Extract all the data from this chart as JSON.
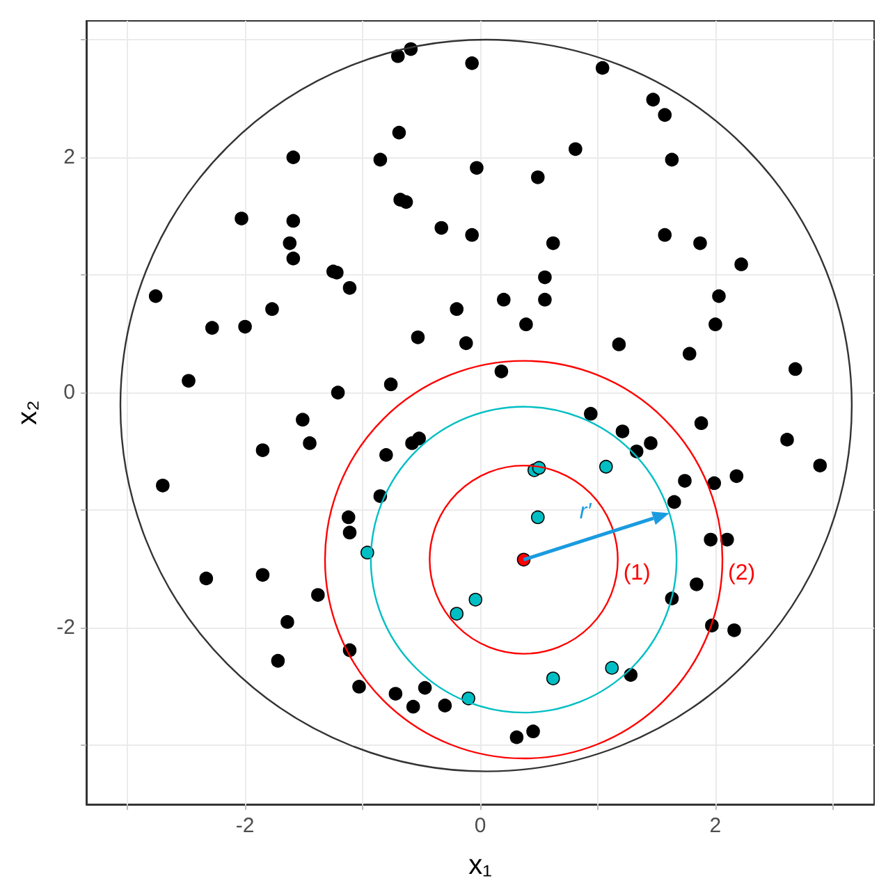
{
  "chart_data": {
    "type": "scatter",
    "xlabel": "x₁",
    "ylabel": "x₂",
    "xlim": [
      -3.35,
      3.35
    ],
    "ylim": [
      -3.5,
      3.16
    ],
    "xticks": [
      {
        "value": -3,
        "label": null
      },
      -2,
      {
        "value": -1,
        "label": null
      },
      0,
      {
        "value": 1,
        "label": null
      },
      2,
      {
        "value": 3,
        "label": null
      }
    ],
    "yticks": [
      {
        "value": -3,
        "label": null
      },
      -2,
      {
        "value": -1,
        "label": null
      },
      0,
      {
        "value": 1,
        "label": null
      },
      2,
      {
        "value": 3,
        "label": null
      }
    ],
    "grid": true,
    "marker": "circle",
    "series": [
      {
        "color": "#000000",
        "x": [
          -0.7,
          -0.59,
          -0.07,
          -0.69,
          -1.59,
          -0.85,
          -0.03,
          -0.68,
          -0.63,
          -2.03,
          -1.59,
          -0.33,
          -0.07,
          -1.62,
          -1.59,
          -1.25,
          -1.22,
          -1.11,
          -2.76,
          -0.2,
          -1.77,
          -2.28,
          -2.0,
          -0.53,
          -0.12,
          -2.48,
          -0.76,
          -1.21,
          1.04,
          1.47,
          1.57,
          0.81,
          0.49,
          1.63,
          0.62,
          1.57,
          1.87,
          2.22,
          0.55,
          0.2,
          0.55,
          2.03,
          0.39,
          2.0,
          1.18,
          1.78,
          2.68,
          0.18,
          -1.51,
          -1.45,
          -1.85,
          -2.7,
          -0.8,
          -0.58,
          -0.52,
          -0.85,
          -1.12,
          -1.11,
          -2.33,
          -1.85,
          -1.38,
          -1.64,
          -1.72,
          -1.11,
          -1.03,
          -0.72,
          -0.47,
          -0.57,
          -0.3,
          0.94,
          1.21,
          1.33,
          1.45,
          1.88,
          2.61,
          2.89,
          2.18,
          1.99,
          1.74,
          1.65,
          1.96,
          2.1,
          1.84,
          1.63,
          1.97,
          2.16,
          1.28,
          0.45,
          0.31
        ],
        "values": [
          2.86,
          2.92,
          2.8,
          2.21,
          2.0,
          1.98,
          1.91,
          1.64,
          1.62,
          1.48,
          1.46,
          1.4,
          1.34,
          1.27,
          1.14,
          1.03,
          1.02,
          0.89,
          0.82,
          0.71,
          0.71,
          0.55,
          0.56,
          0.47,
          0.42,
          0.1,
          0.07,
          0.0,
          2.76,
          2.49,
          2.36,
          2.07,
          1.83,
          1.98,
          1.27,
          1.34,
          1.27,
          1.09,
          0.98,
          0.79,
          0.79,
          0.82,
          0.58,
          0.58,
          0.41,
          0.33,
          0.2,
          0.18,
          -0.23,
          -0.43,
          -0.49,
          -0.79,
          -0.53,
          -0.43,
          -0.39,
          -0.88,
          -1.06,
          -1.19,
          -1.58,
          -1.55,
          -1.72,
          -1.95,
          -2.28,
          -2.19,
          -2.5,
          -2.56,
          -2.51,
          -2.67,
          -2.66,
          -0.18,
          -0.33,
          -0.5,
          -0.43,
          -0.26,
          -0.4,
          -0.62,
          -0.71,
          -0.77,
          -0.75,
          -0.93,
          -1.25,
          -1.25,
          -1.63,
          -1.75,
          -1.98,
          -2.02,
          -2.4,
          -2.88,
          -2.93
        ]
      },
      {
        "color": "#00bfc4",
        "x": [
          -0.96,
          -0.2,
          -0.04,
          -0.1,
          0.46,
          0.5,
          1.07,
          0.49,
          0.62,
          1.12
        ],
        "values": [
          -1.36,
          -1.88,
          -1.76,
          -2.6,
          -0.66,
          -0.64,
          -0.63,
          -1.06,
          -2.43,
          -2.34
        ]
      },
      {
        "color": "#ff0000",
        "x": [
          0.37
        ],
        "values": [
          -1.42
        ]
      }
    ],
    "annotations": [
      "r′",
      "(1)",
      "(2)"
    ]
  }
}
